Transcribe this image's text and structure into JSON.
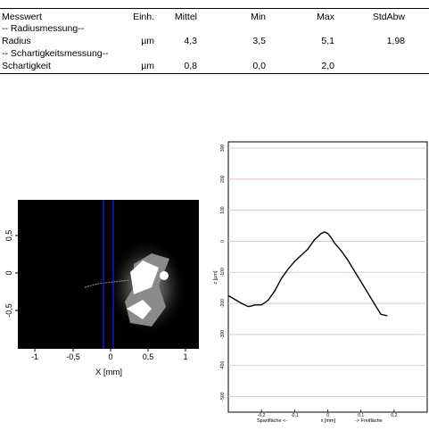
{
  "table": {
    "headers": [
      "Messwert",
      "Einh.",
      "Mittel",
      "Min",
      "Max",
      "StdAbw"
    ],
    "rows": [
      {
        "name": "-- Radiusmessung--",
        "unit": "",
        "mean": "",
        "min": "",
        "max": "",
        "std": ""
      },
      {
        "name": "Radius",
        "unit": "µm",
        "mean": "4,3",
        "min": "3,5",
        "max": "5,1",
        "std": "1,98"
      },
      {
        "name": "-- Schartigkeitsmessung--",
        "unit": "",
        "mean": "",
        "min": "",
        "max": "",
        "std": ""
      },
      {
        "name": "Schartigkeit",
        "unit": "µm",
        "mean": "0,8",
        "min": "0,0",
        "max": "2,0",
        "std": ""
      }
    ]
  },
  "image_plot": {
    "xlabel": "X [mm]",
    "xticks": [
      "-1",
      "-0,5",
      "0",
      "0,5",
      "1"
    ],
    "yticks": [
      "0,5",
      "0",
      "-0,5"
    ]
  },
  "chart_data": {
    "type": "line",
    "ylabel": "z [µm]",
    "xlabel": "x [mm]",
    "x_left_label": "Spanfläche <-",
    "x_right_label": "-> Freifläche",
    "xlim": [
      -0.3,
      0.3
    ],
    "ylim": [
      -550,
      320
    ],
    "xticks": [
      "-0,2",
      "-0,1",
      "0",
      "0,1",
      "0,2"
    ],
    "yticks": [
      "300",
      "200",
      "100",
      "0",
      "-100",
      "-200",
      "-300",
      "-400",
      "-500"
    ],
    "series": [
      {
        "x": [
          -0.3,
          -0.26,
          -0.24,
          -0.23,
          -0.22,
          -0.2,
          -0.18,
          -0.16,
          -0.14,
          -0.12,
          -0.1,
          -0.08,
          -0.06,
          -0.04,
          -0.02,
          -0.01,
          0,
          0.01,
          0.02,
          0.04,
          0.06,
          0.08,
          0.1,
          0.12,
          0.14,
          0.16,
          0.18
        ],
        "y": [
          -175,
          -200,
          -210,
          -208,
          -205,
          -205,
          -190,
          -160,
          -120,
          -90,
          -65,
          -45,
          -25,
          5,
          25,
          30,
          25,
          12,
          -5,
          -30,
          -60,
          -95,
          -130,
          -165,
          -200,
          -235,
          -240
        ]
      }
    ]
  }
}
